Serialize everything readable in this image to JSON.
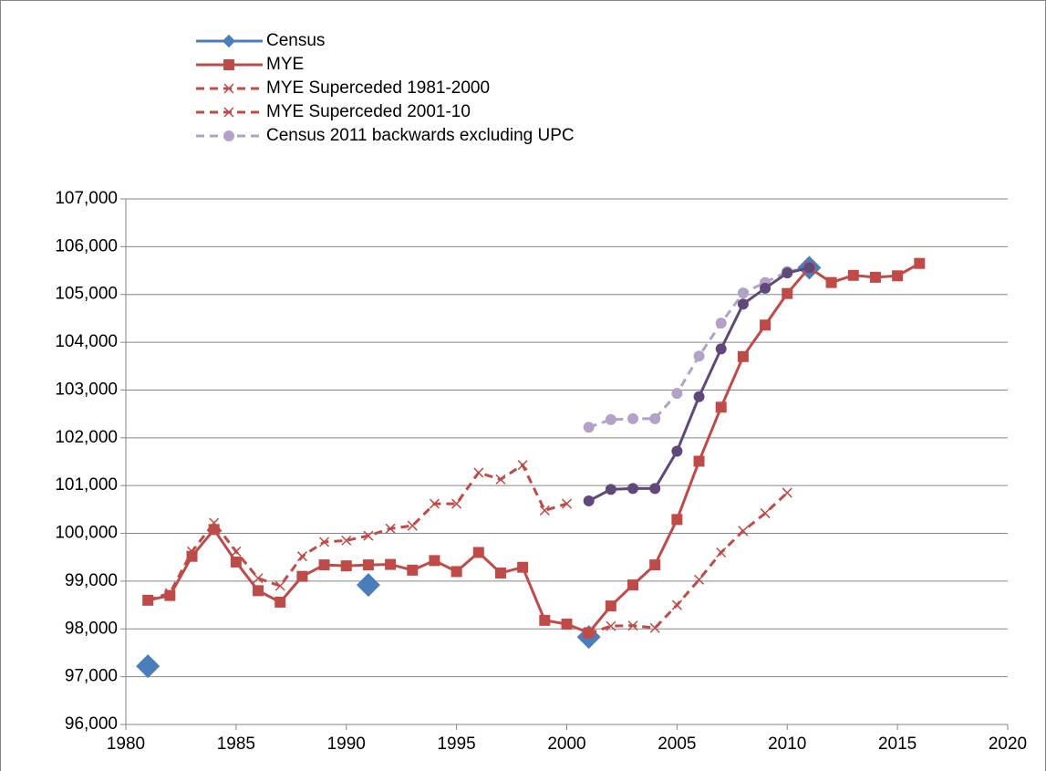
{
  "chart_data": {
    "type": "line",
    "xlim": [
      1980,
      2020
    ],
    "xticks": [
      1980,
      1985,
      1990,
      1995,
      2000,
      2005,
      2010,
      2015,
      2020
    ],
    "ylim": [
      96000,
      107000
    ],
    "yticks": [
      {
        "value": 96000,
        "label": "96,000"
      },
      {
        "value": 97000,
        "label": "97,000"
      },
      {
        "value": 98000,
        "label": "98,000"
      },
      {
        "value": 99000,
        "label": "99,000"
      },
      {
        "value": 100000,
        "label": "100,000"
      },
      {
        "value": 101000,
        "label": "101,000"
      },
      {
        "value": 102000,
        "label": "102,000"
      },
      {
        "value": 103000,
        "label": "103,000"
      },
      {
        "value": 104000,
        "label": "104,000"
      },
      {
        "value": 105000,
        "label": "105,000"
      },
      {
        "value": 106000,
        "label": "106,000"
      },
      {
        "value": 107000,
        "label": "107,000"
      }
    ],
    "grid": true,
    "legend": "top-left",
    "series": [
      {
        "name": "Census",
        "color": "#4a7ebb",
        "marker": "diamond",
        "line": "none",
        "x": [
          1981,
          1991,
          2001,
          2011
        ],
        "values": [
          97220,
          98920,
          97830,
          105560
        ]
      },
      {
        "name": "MYE",
        "color": "#be4b48",
        "marker": "square",
        "line": "solid",
        "x": [
          1981,
          1982,
          1983,
          1984,
          1985,
          1986,
          1987,
          1988,
          1989,
          1990,
          1991,
          1992,
          1993,
          1994,
          1995,
          1996,
          1997,
          1998,
          1999,
          2000,
          2001,
          2002,
          2003,
          2004,
          2005,
          2006,
          2007,
          2008,
          2009,
          2010,
          2011,
          2012,
          2013,
          2014,
          2015,
          2016
        ],
        "values": [
          98600,
          98700,
          99520,
          100080,
          99400,
          98800,
          98560,
          99100,
          99340,
          99320,
          99340,
          99350,
          99230,
          99430,
          99200,
          99600,
          99170,
          99290,
          98180,
          98100,
          97920,
          98480,
          98920,
          99340,
          100290,
          101510,
          102640,
          103700,
          104360,
          105020,
          105560,
          105250,
          105400,
          105360,
          105390,
          105650
        ]
      },
      {
        "name": "MYE Superceded 1981-2000",
        "color": "#be4b48",
        "marker": "x",
        "line": "dashed",
        "x": [
          1981,
          1982,
          1983,
          1984,
          1985,
          1986,
          1987,
          1988,
          1989,
          1990,
          1991,
          1992,
          1993,
          1994,
          1995,
          1996,
          1997,
          1998,
          1999,
          2000
        ],
        "values": [
          98600,
          98750,
          99620,
          100220,
          99620,
          99060,
          98900,
          99520,
          99820,
          99850,
          99950,
          100100,
          100160,
          100620,
          100620,
          101270,
          101130,
          101430,
          100480,
          100620
        ]
      },
      {
        "name": "MYE Superceded 2001-10",
        "color": "#be4b48",
        "marker": "x",
        "line": "dashed",
        "x": [
          2001,
          2002,
          2003,
          2004,
          2005,
          2006,
          2007,
          2008,
          2009,
          2010
        ],
        "values": [
          97900,
          98060,
          98070,
          98020,
          98500,
          99030,
          99600,
          100050,
          100420,
          100850
        ]
      },
      {
        "name": "Census 2011 backwards excluding UPC",
        "color": "#b3a2c7",
        "marker": "circle",
        "line": "dashed",
        "x": [
          2001,
          2002,
          2003,
          2004,
          2005,
          2006,
          2007,
          2008,
          2009,
          2010,
          2011
        ],
        "values": [
          102220,
          102380,
          102400,
          102400,
          102930,
          103710,
          104400,
          105030,
          105250,
          105480,
          105560
        ]
      },
      {
        "color": "#5f497a",
        "marker": "circle",
        "line": "solid",
        "x": [
          2001,
          2002,
          2003,
          2004,
          2005,
          2006,
          2007,
          2008,
          2009,
          2010,
          2011
        ],
        "values": [
          100680,
          100920,
          100940,
          100940,
          101720,
          102860,
          103860,
          104800,
          105130,
          105450,
          105560
        ]
      }
    ]
  }
}
